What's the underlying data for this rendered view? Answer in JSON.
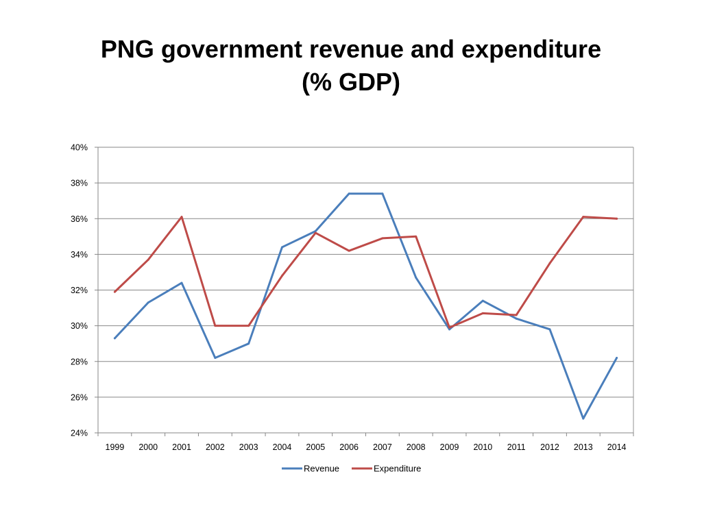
{
  "slide": {
    "title_line1": "PNG government revenue and expenditure",
    "title_line2": "(% GDP)"
  },
  "chart_data": {
    "type": "line",
    "title": "",
    "xlabel": "",
    "ylabel": "",
    "categories": [
      "1999",
      "2000",
      "2001",
      "2002",
      "2003",
      "2004",
      "2005",
      "2006",
      "2007",
      "2008",
      "2009",
      "2010",
      "2011",
      "2012",
      "2013",
      "2014"
    ],
    "ylim": [
      24,
      40
    ],
    "yticks": [
      24,
      26,
      28,
      30,
      32,
      34,
      36,
      38,
      40
    ],
    "ytick_labels": [
      "24%",
      "26%",
      "28%",
      "30%",
      "32%",
      "34%",
      "36%",
      "38%",
      "40%"
    ],
    "grid": true,
    "legend_position": "bottom",
    "series": [
      {
        "name": "Revenue",
        "color": "#4a7ebb",
        "values": [
          29.3,
          31.3,
          32.4,
          28.2,
          29.0,
          34.4,
          35.3,
          37.4,
          37.4,
          32.7,
          29.8,
          31.4,
          30.4,
          29.8,
          24.8,
          28.2
        ]
      },
      {
        "name": "Expenditure",
        "color": "#be4b48",
        "values": [
          31.9,
          33.7,
          36.1,
          30.0,
          30.0,
          32.8,
          35.2,
          34.2,
          34.9,
          35.0,
          29.9,
          30.7,
          30.6,
          33.5,
          36.1,
          36.0
        ]
      }
    ]
  }
}
